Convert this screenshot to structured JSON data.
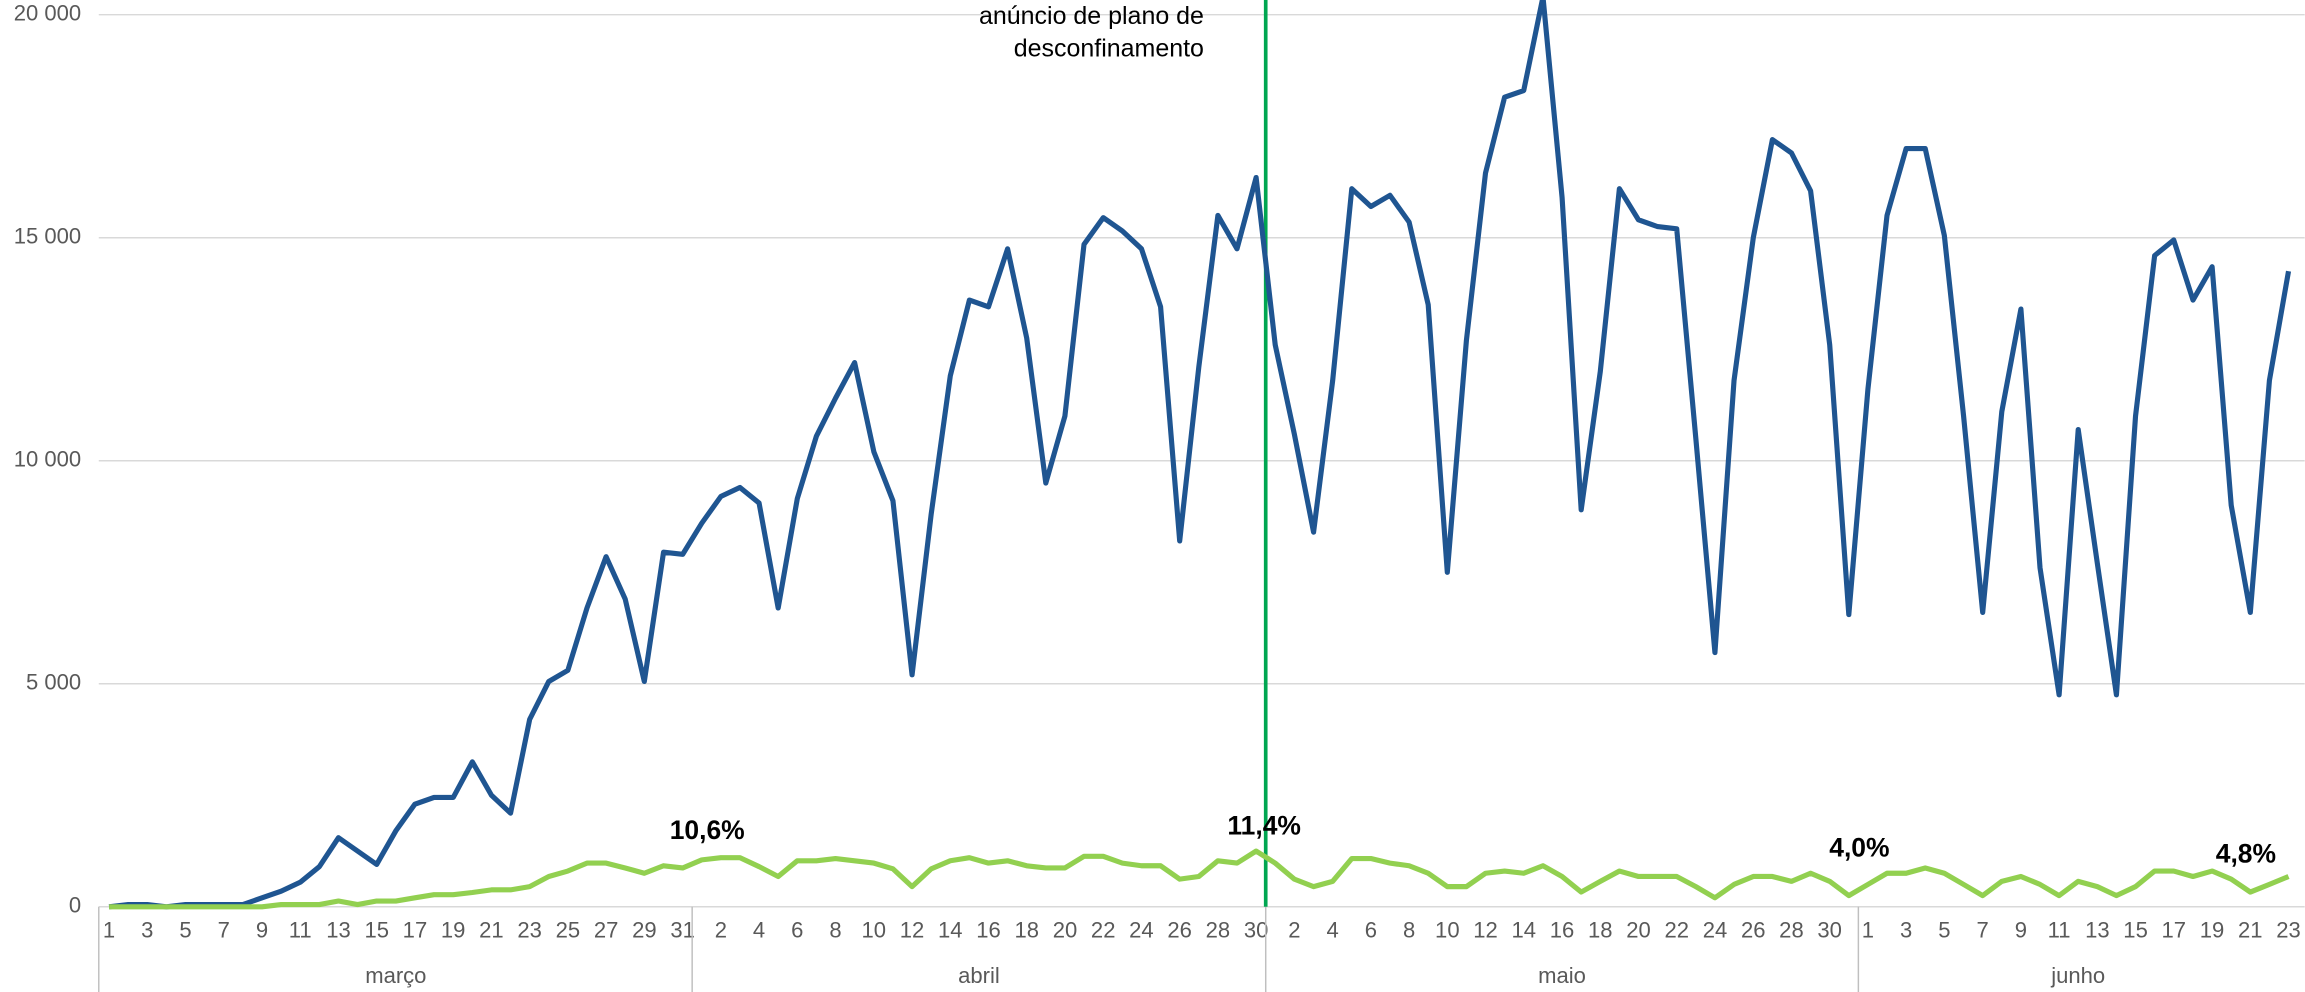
{
  "chart_data": {
    "type": "line",
    "annotation_lines": [
      "anúncio de plano de",
      "desconfinamento"
    ],
    "categories": [
      1,
      null,
      3,
      null,
      5,
      null,
      7,
      null,
      9,
      null,
      11,
      null,
      13,
      null,
      15,
      null,
      17,
      null,
      19,
      null,
      21,
      null,
      23,
      null,
      25,
      null,
      27,
      null,
      29,
      null,
      31,
      null,
      2,
      null,
      4,
      null,
      6,
      null,
      8,
      null,
      10,
      null,
      12,
      null,
      14,
      null,
      16,
      null,
      18,
      null,
      20,
      null,
      22,
      null,
      24,
      null,
      26,
      null,
      28,
      null,
      30,
      null,
      2,
      null,
      4,
      null,
      6,
      null,
      8,
      null,
      10,
      null,
      12,
      null,
      14,
      null,
      16,
      null,
      18,
      null,
      20,
      null,
      22,
      null,
      24,
      null,
      26,
      null,
      28,
      null,
      30,
      null,
      1,
      null,
      3,
      null,
      5,
      null,
      7,
      null,
      9,
      null,
      11,
      null,
      13,
      null,
      15,
      null,
      17,
      null,
      19,
      null,
      21,
      null,
      23
    ],
    "months": [
      "março",
      "abril",
      "maio",
      "junho"
    ],
    "series": [
      {
        "color": "#1f5591",
        "values": [
          0,
          50,
          50,
          0,
          50,
          50,
          50,
          50,
          200,
          350,
          550,
          900,
          1550,
          1250,
          950,
          1700,
          2300,
          2450,
          2450,
          3250,
          2500,
          2100,
          4200,
          5050,
          5300,
          6700,
          7850,
          6900,
          5050,
          7950,
          7900,
          8600,
          9200,
          9400,
          9050,
          6700,
          9150,
          10550,
          11400,
          12200,
          10200,
          9100,
          5200,
          8800,
          11900,
          13600,
          13450,
          14750,
          12750,
          9500,
          11000,
          14850,
          15450,
          15150,
          14750,
          13450,
          8200,
          12100,
          15500,
          14750,
          16350,
          12600,
          10600,
          8400,
          11800,
          16100,
          15700,
          15950,
          15350,
          13500,
          7500,
          12700,
          16450,
          18150,
          18300,
          20400,
          15900,
          8900,
          12000,
          16100,
          15400,
          15250,
          15200,
          10500,
          5700,
          11800,
          15000,
          17200,
          16900,
          16050,
          12600,
          6550,
          11600,
          15500,
          17000,
          17000,
          15050,
          11000,
          6600,
          11100,
          13400,
          7600,
          4750,
          10700,
          7700,
          4750,
          11000,
          14600,
          14950,
          13600,
          14350,
          9000,
          6600,
          11800,
          14250
        ]
      },
      {
        "color": "#92d050",
        "values": [
          0,
          0,
          0,
          0,
          0,
          0,
          0,
          0,
          0,
          50,
          50,
          50,
          130,
          50,
          130,
          130,
          200,
          270,
          270,
          320,
          380,
          380,
          450,
          680,
          800,
          980,
          980,
          870,
          750,
          920,
          870,
          1050,
          1100,
          1100,
          900,
          680,
          1030,
          1030,
          1080,
          1030,
          980,
          850,
          450,
          850,
          1030,
          1100,
          980,
          1030,
          920,
          870,
          870,
          1130,
          1130,
          980,
          920,
          920,
          620,
          680,
          1030,
          980,
          1250,
          980,
          620,
          450,
          570,
          1080,
          1080,
          980,
          920,
          750,
          450,
          450,
          750,
          800,
          750,
          920,
          680,
          330,
          570,
          800,
          680,
          680,
          680,
          450,
          200,
          500,
          680,
          680,
          570,
          750,
          570,
          250,
          500,
          750,
          750,
          870,
          750,
          500,
          250,
          570,
          680,
          500,
          250,
          570,
          450,
          250,
          450,
          800,
          800,
          680,
          800,
          620,
          330,
          500,
          680
        ]
      }
    ],
    "annotations": [
      "10,6%",
      "11,4%",
      "4,0%",
      "4,8%"
    ],
    "event_color": "#00a651",
    "ylim": [
      0,
      20000
    ],
    "yticks": [
      0,
      {
        "value": 5000,
        "label": "5 000"
      },
      {
        "value": 10000,
        "label": "10 000"
      },
      {
        "value": 15000,
        "label": "15 000"
      },
      {
        "value": 20000,
        "label": "20 000"
      }
    ],
    "grid": true
  }
}
